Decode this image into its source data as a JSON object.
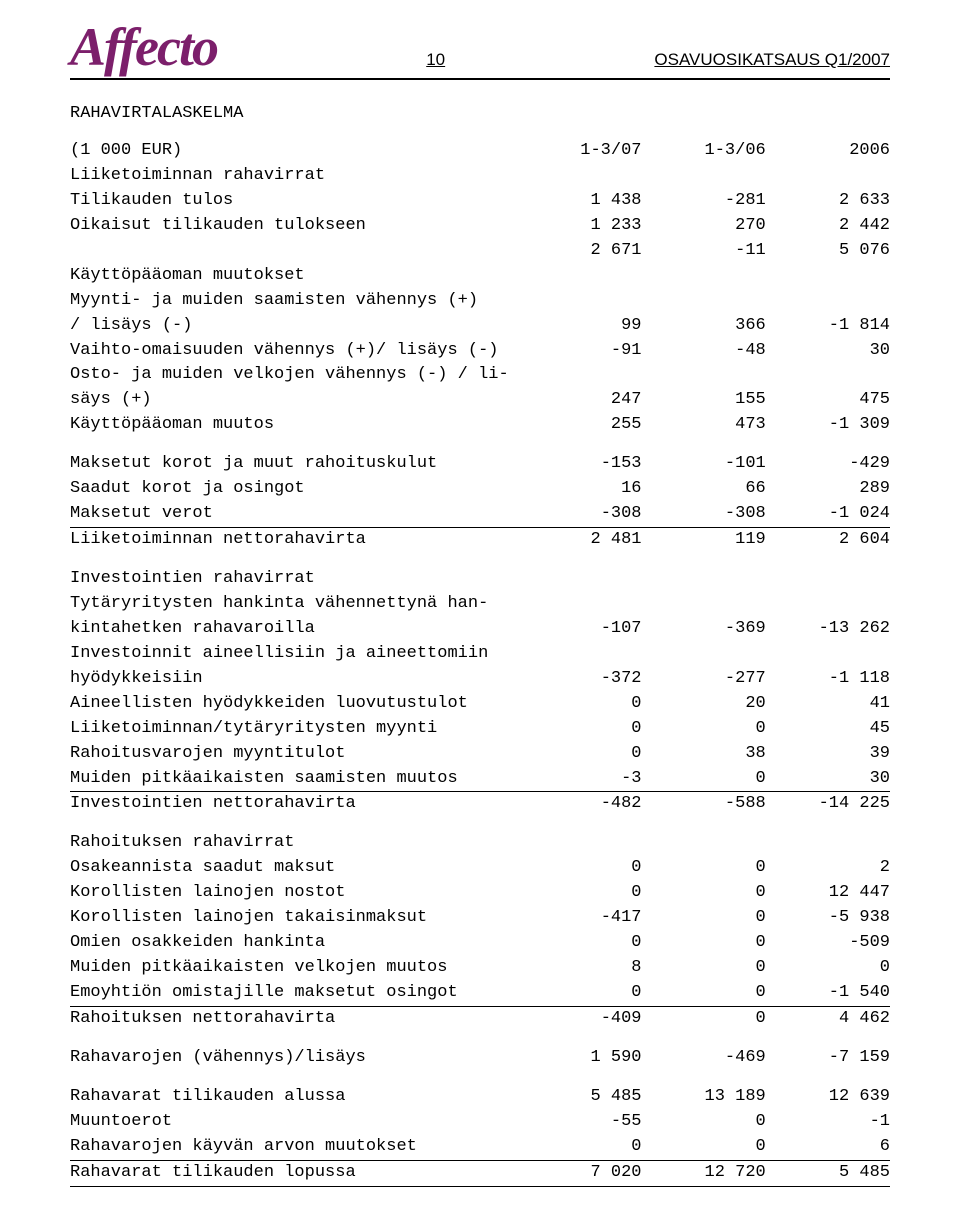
{
  "header": {
    "logo_text": "Affecto",
    "page_number": "10",
    "report_title": "OSAVUOSIKATSAUS Q1/2007"
  },
  "section_title": "RAHAVIRTALASKELMA",
  "colors": {
    "logo_color": "#7c1f6b",
    "text_color": "#000000",
    "background_color": "#ffffff",
    "rule_color": "#000000"
  },
  "typography": {
    "body_font": "Courier New",
    "body_size_pt": 13,
    "header_font": "Arial",
    "header_size_pt": 13,
    "logo_font": "Times Italic",
    "logo_size_pt": 40
  },
  "columns": [
    "(1 000 EUR)",
    "1-3/07",
    "1-3/06",
    "2006"
  ],
  "sections": [
    {
      "title": "Liiketoiminnan rahavirrat",
      "rows": [
        {
          "label": "Tilikauden tulos",
          "v": [
            "1 438",
            "-281",
            "2 633"
          ]
        },
        {
          "label": "Oikaisut tilikauden tulokseen",
          "v": [
            "1 233",
            "270",
            "2 442"
          ]
        },
        {
          "label": "",
          "v": [
            "2 671",
            "-11",
            "5 076"
          ]
        },
        {
          "label": "Käyttöpääoman muutokset",
          "v": [
            "",
            "",
            ""
          ]
        },
        {
          "label": "Myynti- ja muiden saamisten vähennys (+) / lisäys (-)",
          "v": [
            "99",
            "366",
            "-1 814"
          ]
        },
        {
          "label": "Vaihto-omaisuuden vähennys (+)/ lisäys (-)",
          "v": [
            "-91",
            "-48",
            "30"
          ]
        },
        {
          "label": "Osto- ja muiden velkojen vähennys (-) / lisäys (+)",
          "v": [
            "247",
            "155",
            "475"
          ]
        },
        {
          "label": "Käyttöpääoman muutos",
          "v": [
            "255",
            "473",
            "-1 309"
          ]
        }
      ]
    },
    {
      "rows": [
        {
          "label": "Maksetut korot ja muut rahoituskulut",
          "v": [
            "-153",
            "-101",
            "-429"
          ]
        },
        {
          "label": "Saadut korot ja osingot",
          "v": [
            "16",
            "66",
            "289"
          ]
        },
        {
          "label": "Maksetut verot",
          "v": [
            "-308",
            "-308",
            "-1 024"
          ],
          "underline": true
        },
        {
          "label": "Liiketoiminnan nettorahavirta",
          "v": [
            "2 481",
            "119",
            "2 604"
          ]
        }
      ]
    },
    {
      "title": "Investointien rahavirrat",
      "rows": [
        {
          "label": "Tytäryritysten hankinta vähennettynä hankintahetken rahavaroilla",
          "v": [
            "-107",
            "-369",
            "-13 262"
          ]
        },
        {
          "label": "Investoinnit aineellisiin ja aineettomiin hyödykkeisiin",
          "v": [
            "-372",
            "-277",
            "-1 118"
          ]
        },
        {
          "label": "Aineellisten hyödykkeiden luovutustulot",
          "v": [
            "0",
            "20",
            "41"
          ]
        },
        {
          "label": "Liiketoiminnan/tytäryritysten myynti",
          "v": [
            "0",
            "0",
            "45"
          ]
        },
        {
          "label": "Rahoitusvarojen myyntitulot",
          "v": [
            "0",
            "38",
            "39"
          ]
        },
        {
          "label": "Muiden pitkäaikaisten saamisten muutos",
          "v": [
            "-3",
            "0",
            "30"
          ],
          "underline": true
        },
        {
          "label": "Investointien nettorahavirta",
          "v": [
            "-482",
            "-588",
            "-14 225"
          ]
        }
      ]
    },
    {
      "title": "Rahoituksen rahavirrat",
      "rows": [
        {
          "label": "Osakeannista saadut maksut",
          "v": [
            "0",
            "0",
            "2"
          ]
        },
        {
          "label": "Korollisten lainojen nostot",
          "v": [
            "0",
            "0",
            "12 447"
          ]
        },
        {
          "label": "Korollisten lainojen takaisinmaksut",
          "v": [
            "-417",
            "0",
            "-5 938"
          ]
        },
        {
          "label": "Omien osakkeiden hankinta",
          "v": [
            "0",
            "0",
            "-509"
          ]
        },
        {
          "label": "Muiden pitkäaikaisten velkojen muutos",
          "v": [
            "8",
            "0",
            "0"
          ]
        },
        {
          "label": "Emoyhtiön omistajille maksetut osingot",
          "v": [
            "0",
            "0",
            "-1 540"
          ],
          "underline": true
        },
        {
          "label": "Rahoituksen nettorahavirta",
          "v": [
            "-409",
            "0",
            "4 462"
          ]
        }
      ]
    },
    {
      "rows": [
        {
          "label": "Rahavarojen (vähennys)/lisäys",
          "v": [
            "1 590",
            "-469",
            "-7 159"
          ]
        }
      ]
    },
    {
      "rows": [
        {
          "label": "Rahavarat tilikauden alussa",
          "v": [
            "5 485",
            "13 189",
            "12 639"
          ]
        },
        {
          "label": "Muuntoerot",
          "v": [
            "-55",
            "0",
            "-1"
          ]
        },
        {
          "label": "Rahavarojen käyvän arvon muutokset",
          "v": [
            "0",
            "0",
            "6"
          ],
          "underline": true
        },
        {
          "label": "Rahavarat tilikauden lopussa",
          "v": [
            "7 020",
            "12 720",
            "5 485"
          ],
          "underline": true
        }
      ]
    }
  ]
}
